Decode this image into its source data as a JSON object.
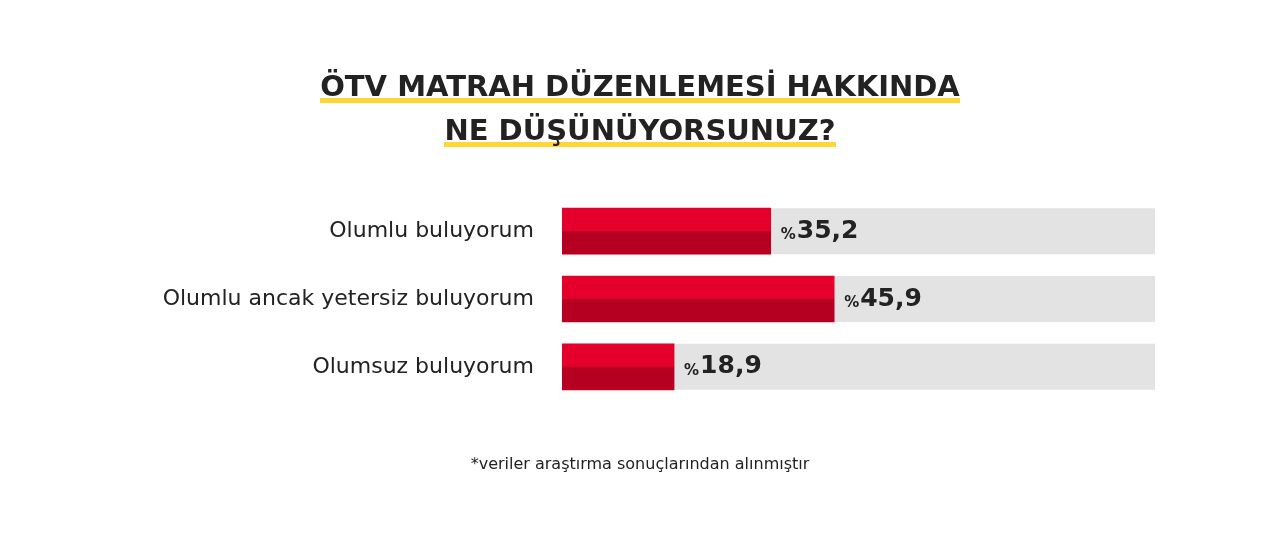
{
  "chart_data": {
    "type": "bar",
    "orientation": "horizontal",
    "title": "ÖTV MATRAH DÜZENLEMESİ HAKKINDA\nNE DÜŞÜNÜYORSUNUZ?",
    "categories": [
      "Olumlu buluyorum",
      "Olumlu ancak yetersiz buluyorum",
      "Olumsuz buluyorum"
    ],
    "values": [
      35.2,
      45.9,
      18.9
    ],
    "value_labels": [
      "%35,2",
      "%45,9",
      "%18,9"
    ],
    "color": "#e4002b",
    "xlim": [
      0,
      100
    ],
    "tick_labels": "y",
    "legend": false,
    "annotations": [
      "*veriler araştırma sonuçlarından alınmıştır"
    ]
  }
}
